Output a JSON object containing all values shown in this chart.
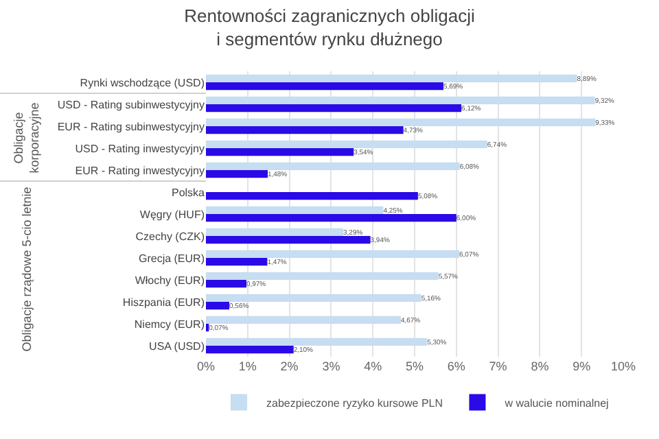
{
  "chart_data": {
    "type": "bar",
    "orientation": "horizontal",
    "title": "Rentowności zagranicznych obligacji\ni segmentów rynku dłużnego",
    "categories": [
      "Rynki wschodzące (USD)",
      "USD - Rating subinwestycyjny",
      "EUR - Rating subinwestycyjny",
      "USD - Rating inwestycyjny",
      "EUR - Rating inwestycyjny",
      "Polska",
      "Węgry (HUF)",
      "Czechy (CZK)",
      "Grecja (EUR)",
      "Włochy (EUR)",
      "Hiszpania (EUR)",
      "Niemcy (EUR)",
      "USA (USD)"
    ],
    "series": [
      {
        "name": "zabezpieczone ryzyko kursowe PLN",
        "color": "#c6ddf2",
        "values": [
          8.89,
          9.32,
          9.33,
          6.74,
          6.08,
          null,
          4.25,
          3.29,
          6.07,
          5.57,
          5.16,
          4.67,
          5.3
        ],
        "value_labels": [
          "8,89%",
          "9,32%",
          "9,33%",
          "6,74%",
          "6,08%",
          null,
          "4,25%",
          "3,29%",
          "6,07%",
          "5,57%",
          "5,16%",
          "4,67%",
          "5,30%"
        ]
      },
      {
        "name": "w walucie nominalnej",
        "color": "#2a0ae6",
        "values": [
          5.69,
          6.12,
          4.73,
          3.54,
          1.48,
          5.08,
          6.0,
          3.94,
          1.47,
          0.97,
          0.56,
          0.07,
          2.1
        ],
        "value_labels": [
          "5,69%",
          "6,12%",
          "4,73%",
          "3,54%",
          "1,48%",
          "5,08%",
          "6,00%",
          "3,94%",
          "1,47%",
          "0,97%",
          "0,56%",
          "0,07%",
          "2,10%"
        ]
      }
    ],
    "xlim": [
      0,
      10
    ],
    "xticks": [
      {
        "value": 0,
        "label": "0%"
      },
      {
        "value": 1,
        "label": "1%"
      },
      {
        "value": 2,
        "label": "2%"
      },
      {
        "value": 3,
        "label": "3%"
      },
      {
        "value": 4,
        "label": "4%"
      },
      {
        "value": 5,
        "label": "5%"
      },
      {
        "value": 6,
        "label": "6%"
      },
      {
        "value": 7,
        "label": "7%"
      },
      {
        "value": 8,
        "label": "8%"
      },
      {
        "value": 9,
        "label": "9%"
      },
      {
        "value": 10,
        "label": "10%"
      }
    ],
    "grid": "x",
    "legend": "bottom",
    "annotations": [
      "Obligacje korporacyjne",
      "Obligacje rządowe 5-cio letnie"
    ]
  }
}
